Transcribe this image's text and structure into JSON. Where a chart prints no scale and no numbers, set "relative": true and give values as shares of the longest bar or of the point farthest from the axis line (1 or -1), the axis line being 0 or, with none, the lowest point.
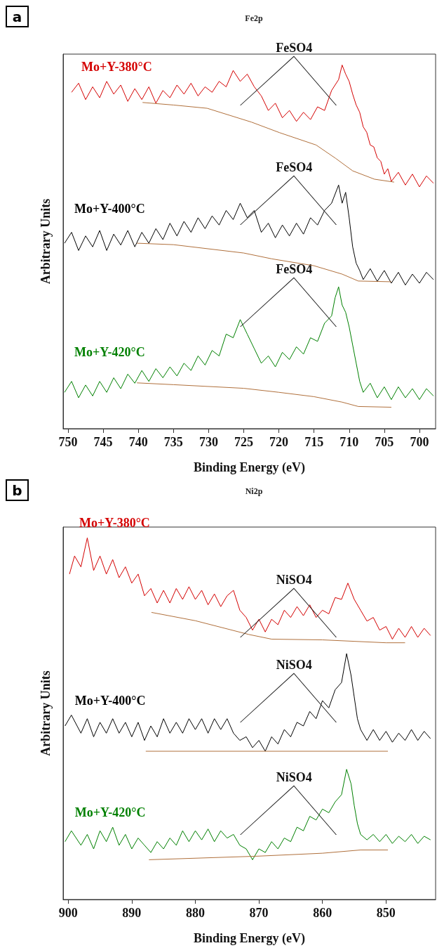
{
  "chart_data": [
    {
      "type": "line",
      "title": "Fe2p",
      "xlabel": "Binding Energy (eV)",
      "ylabel": "Arbitrary Units",
      "relative": true,
      "tick_labels": "x",
      "marker": "none",
      "line_style": "solid",
      "grid": false,
      "legend": false,
      "xlim": [
        750.7,
        697.7
      ],
      "xticks": [
        750,
        745,
        740,
        735,
        730,
        725,
        720,
        715,
        710,
        705,
        700
      ],
      "annotations": [
        "a",
        "FeSO4",
        "FeSO4",
        "FeSO4"
      ],
      "series": [
        {
          "name": "Mo+Y-380°C",
          "color": "#d40000",
          "x": [
            749.5,
            748.5,
            747.5,
            746.5,
            745.5,
            744.5,
            743.5,
            742.5,
            741.5,
            740.5,
            739.5,
            738.5,
            737.5,
            736.5,
            735.5,
            734.5,
            733.5,
            732.5,
            731.5,
            730.5,
            729.5,
            728.5,
            727.5,
            726.5,
            725.5,
            724.5,
            723.5,
            722.5,
            721.5,
            720.5,
            719.5,
            718.5,
            717.5,
            716.5,
            715.5,
            714.5,
            713.5,
            712.5,
            711.5,
            711,
            710.5,
            710,
            709.5,
            709,
            708.5,
            708,
            707.5,
            707,
            706.5,
            706,
            705.5,
            705,
            704.5,
            704,
            703,
            702,
            701,
            700,
            699,
            698
          ],
          "values": [
            0.925,
            0.95,
            0.905,
            0.94,
            0.91,
            0.955,
            0.92,
            0.945,
            0.9,
            0.935,
            0.905,
            0.94,
            0.895,
            0.93,
            0.91,
            0.945,
            0.92,
            0.95,
            0.915,
            0.94,
            0.925,
            0.955,
            0.94,
            0.985,
            0.955,
            0.975,
            0.94,
            0.915,
            0.875,
            0.895,
            0.855,
            0.875,
            0.845,
            0.87,
            0.85,
            0.885,
            0.875,
            0.93,
            0.96,
            1.0,
            0.975,
            0.955,
            0.92,
            0.89,
            0.87,
            0.83,
            0.815,
            0.78,
            0.775,
            0.745,
            0.735,
            0.7,
            0.715,
            0.68,
            0.705,
            0.67,
            0.7,
            0.665,
            0.695,
            0.675
          ]
        },
        {
          "color": "#b0703c",
          "x": [
            739.4,
            735,
            730.2,
            723.9,
            719.9,
            714.7,
            711.9,
            709.5,
            706.4,
            703.6
          ],
          "values": [
            0.897,
            0.89,
            0.881,
            0.843,
            0.814,
            0.78,
            0.743,
            0.709,
            0.686,
            0.678
          ]
        },
        {
          "name": "Mo+Y-400°C",
          "color": "#000000",
          "x": [
            750.5,
            749.5,
            748.5,
            747.5,
            746.5,
            745.5,
            744.5,
            743.5,
            742.5,
            741.5,
            740.5,
            739.5,
            738.5,
            737.5,
            736.5,
            735.5,
            734.5,
            733.5,
            732.5,
            731.5,
            730.5,
            729.5,
            728.5,
            727.5,
            726.5,
            725.5,
            724.5,
            723.5,
            722.5,
            721.5,
            720.5,
            719.5,
            718.5,
            717.5,
            716.5,
            715.5,
            714.5,
            713.5,
            712.5,
            711.5,
            711,
            710.5,
            710,
            709.5,
            709,
            708.5,
            708,
            707,
            706,
            705,
            704,
            703,
            702,
            701,
            700,
            699,
            698
          ],
          "values": [
            0.51,
            0.54,
            0.49,
            0.53,
            0.5,
            0.545,
            0.49,
            0.535,
            0.505,
            0.545,
            0.5,
            0.54,
            0.51,
            0.55,
            0.52,
            0.565,
            0.53,
            0.57,
            0.54,
            0.58,
            0.55,
            0.585,
            0.56,
            0.6,
            0.575,
            0.62,
            0.58,
            0.6,
            0.54,
            0.565,
            0.525,
            0.56,
            0.53,
            0.565,
            0.535,
            0.58,
            0.56,
            0.6,
            0.62,
            0.67,
            0.62,
            0.65,
            0.58,
            0.5,
            0.455,
            0.435,
            0.41,
            0.44,
            0.405,
            0.435,
            0.4,
            0.43,
            0.395,
            0.425,
            0.4,
            0.43,
            0.41
          ]
        },
        {
          "color": "#b0703c",
          "x": [
            740.2,
            735,
            725,
            721,
            715,
            711,
            708.7,
            704
          ],
          "values": [
            0.51,
            0.506,
            0.483,
            0.467,
            0.448,
            0.425,
            0.406,
            0.404
          ]
        },
        {
          "name": "Mo+Y-420°C",
          "color": "#008000",
          "x": [
            750.5,
            749.5,
            748.5,
            747.5,
            746.5,
            745.5,
            744.5,
            743.5,
            742.5,
            741.5,
            740.5,
            739.5,
            738.5,
            737.5,
            736.5,
            735.5,
            734.5,
            733.5,
            732.5,
            731.5,
            730.5,
            729.5,
            728.5,
            727.5,
            726.5,
            725.5,
            724.5,
            723.5,
            722.5,
            721.5,
            720.5,
            719.5,
            718.5,
            717.5,
            716.5,
            715.5,
            714.5,
            713.5,
            712.5,
            712,
            711.5,
            711,
            710.5,
            710,
            709.5,
            709,
            708.5,
            708,
            707,
            706,
            705,
            704,
            703,
            702,
            701,
            700,
            699,
            698
          ],
          "values": [
            0.1,
            0.13,
            0.085,
            0.12,
            0.09,
            0.13,
            0.1,
            0.14,
            0.11,
            0.15,
            0.125,
            0.16,
            0.13,
            0.165,
            0.14,
            0.17,
            0.145,
            0.18,
            0.16,
            0.2,
            0.175,
            0.215,
            0.2,
            0.26,
            0.25,
            0.3,
            0.26,
            0.22,
            0.18,
            0.2,
            0.17,
            0.21,
            0.19,
            0.225,
            0.205,
            0.25,
            0.24,
            0.29,
            0.31,
            0.36,
            0.39,
            0.34,
            0.32,
            0.28,
            0.23,
            0.18,
            0.13,
            0.1,
            0.125,
            0.085,
            0.115,
            0.08,
            0.115,
            0.085,
            0.11,
            0.08,
            0.11,
            0.09
          ]
        },
        {
          "color": "#b0703c",
          "x": [
            740.2,
            735,
            725,
            720,
            715,
            711,
            708.7,
            704
          ],
          "values": [
            0.126,
            0.121,
            0.111,
            0.1,
            0.088,
            0.073,
            0.061,
            0.059
          ]
        }
      ]
    },
    {
      "type": "line",
      "title": "Ni2p",
      "xlabel": "Binding Energy (eV)",
      "ylabel": "Arbitrary Units",
      "relative": true,
      "tick_labels": "x",
      "marker": "none",
      "line_style": "solid",
      "grid": false,
      "legend": false,
      "xlim": [
        900.8,
        842.2
      ],
      "xticks": [
        900,
        890,
        880,
        870,
        860,
        850
      ],
      "annotations": [
        "b",
        "NiSO4",
        "NiSO4",
        "NiSO4"
      ],
      "series": [
        {
          "name": "Mo+Y-380°C",
          "color": "#d40000",
          "x": [
            899.8,
            899,
            898,
            897,
            896,
            895,
            894,
            893,
            892,
            891,
            890,
            889,
            888,
            887,
            886,
            885,
            884,
            883,
            882,
            881,
            880,
            879,
            878,
            877,
            876,
            875,
            874,
            873,
            872,
            871,
            870,
            869,
            868,
            867,
            866,
            865,
            864,
            863,
            862,
            861,
            860,
            859,
            858,
            857,
            856,
            855,
            854,
            853,
            852,
            851,
            850,
            849,
            848,
            847,
            846,
            845,
            844,
            843
          ],
          "values": [
            0.9,
            0.95,
            0.92,
            1.0,
            0.91,
            0.95,
            0.9,
            0.94,
            0.89,
            0.92,
            0.875,
            0.9,
            0.84,
            0.86,
            0.82,
            0.855,
            0.82,
            0.86,
            0.83,
            0.865,
            0.83,
            0.855,
            0.815,
            0.845,
            0.81,
            0.84,
            0.855,
            0.8,
            0.78,
            0.745,
            0.775,
            0.74,
            0.775,
            0.76,
            0.8,
            0.78,
            0.81,
            0.785,
            0.815,
            0.78,
            0.8,
            0.79,
            0.835,
            0.83,
            0.875,
            0.83,
            0.8,
            0.77,
            0.78,
            0.745,
            0.755,
            0.72,
            0.75,
            0.725,
            0.755,
            0.725,
            0.75,
            0.73
          ]
        },
        {
          "color": "#b0703c",
          "x": [
            886.9,
            880,
            871.6,
            868,
            860,
            855,
            850,
            847
          ],
          "values": [
            0.794,
            0.771,
            0.733,
            0.72,
            0.718,
            0.714,
            0.71,
            0.71
          ]
        },
        {
          "name": "Mo+Y-400°C",
          "color": "#000000",
          "x": [
            900.5,
            899.5,
            898,
            897,
            896,
            895,
            894,
            893,
            892,
            891,
            890,
            889,
            888,
            887,
            886,
            885,
            884,
            883,
            882,
            881,
            880,
            879,
            878,
            877,
            876,
            875,
            874,
            873,
            872,
            871,
            870,
            869,
            868,
            867,
            866,
            865,
            864,
            863,
            862,
            861,
            860,
            859,
            858,
            857,
            856.2,
            855.5,
            855,
            854.5,
            854,
            853,
            852,
            851,
            850,
            849,
            848,
            847,
            846,
            845,
            844,
            843
          ],
          "values": [
            0.48,
            0.51,
            0.46,
            0.5,
            0.45,
            0.49,
            0.46,
            0.5,
            0.46,
            0.49,
            0.45,
            0.49,
            0.44,
            0.48,
            0.45,
            0.5,
            0.46,
            0.49,
            0.46,
            0.5,
            0.47,
            0.5,
            0.46,
            0.5,
            0.47,
            0.5,
            0.46,
            0.44,
            0.45,
            0.42,
            0.44,
            0.41,
            0.45,
            0.43,
            0.47,
            0.45,
            0.49,
            0.48,
            0.52,
            0.5,
            0.55,
            0.53,
            0.58,
            0.6,
            0.68,
            0.62,
            0.56,
            0.5,
            0.47,
            0.44,
            0.47,
            0.44,
            0.465,
            0.435,
            0.46,
            0.44,
            0.47,
            0.44,
            0.465,
            0.445
          ]
        },
        {
          "color": "#b0703c",
          "x": [
            887.8,
            849.7
          ],
          "values": [
            0.41,
            0.41
          ]
        },
        {
          "name": "Mo+Y-420°C",
          "color": "#008000",
          "x": [
            900.5,
            899.5,
            898,
            897,
            896,
            895,
            894,
            893,
            892,
            891,
            890,
            889,
            888,
            887,
            886,
            885,
            884,
            883,
            882,
            881,
            880,
            879,
            878,
            877,
            876,
            875,
            874,
            873,
            872,
            871,
            870,
            869,
            868,
            867,
            866,
            865,
            864,
            863,
            862,
            861,
            860,
            859,
            858,
            857,
            856.2,
            855.5,
            855,
            854.5,
            854,
            853,
            852,
            851,
            850,
            849,
            848,
            847,
            846,
            845,
            844,
            843
          ],
          "values": [
            0.16,
            0.19,
            0.15,
            0.18,
            0.14,
            0.19,
            0.16,
            0.2,
            0.15,
            0.18,
            0.14,
            0.17,
            0.15,
            0.13,
            0.16,
            0.14,
            0.17,
            0.15,
            0.19,
            0.16,
            0.19,
            0.165,
            0.195,
            0.16,
            0.19,
            0.17,
            0.18,
            0.15,
            0.14,
            0.11,
            0.14,
            0.13,
            0.16,
            0.14,
            0.17,
            0.16,
            0.2,
            0.19,
            0.23,
            0.22,
            0.25,
            0.24,
            0.27,
            0.29,
            0.36,
            0.32,
            0.26,
            0.21,
            0.18,
            0.165,
            0.18,
            0.16,
            0.18,
            0.155,
            0.175,
            0.16,
            0.18,
            0.155,
            0.175,
            0.165
          ]
        },
        {
          "color": "#b0703c",
          "x": [
            887.3,
            870,
            860,
            854,
            849.7
          ],
          "values": [
            0.11,
            0.12,
            0.128,
            0.137,
            0.137
          ]
        }
      ]
    }
  ]
}
